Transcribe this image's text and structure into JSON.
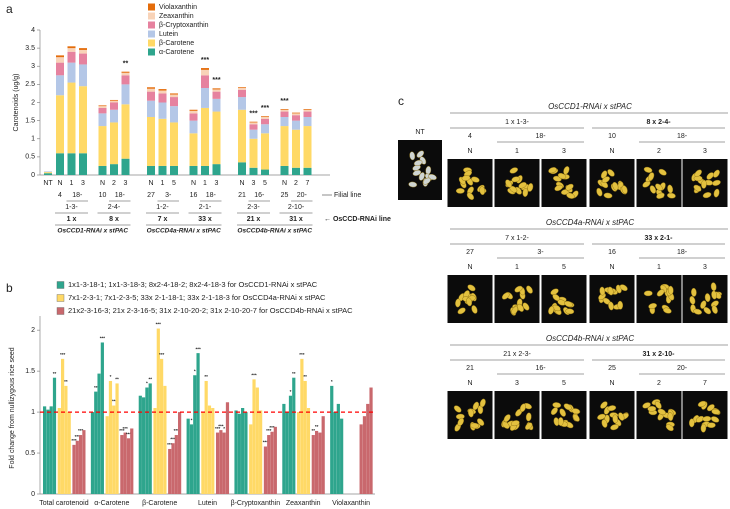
{
  "chart_data": [
    {
      "panel": "a",
      "type": "stacked-bar",
      "y_label": "Carotenoids (ug/g)",
      "ylim": [
        0,
        4
      ],
      "yticks": [
        0,
        0.5,
        1,
        1.5,
        2,
        2.5,
        3,
        3.5,
        4
      ],
      "legend": "top",
      "categories": [
        "NT",
        "N",
        "1",
        "3",
        "N",
        "2",
        "3",
        "N",
        "1",
        "5",
        "N",
        "1",
        "3",
        "N",
        "3",
        "5",
        "N",
        "2",
        "7"
      ],
      "significance": [
        null,
        null,
        null,
        null,
        null,
        null,
        "**",
        null,
        null,
        null,
        null,
        "***",
        "***",
        null,
        "***",
        "***",
        "***",
        null,
        null
      ],
      "families": [
        {
          "name": "OsCCD1-RNAi x stPAC",
          "lines": [
            {
              "cross": "1 x",
              "parent": "1-3-",
              "progeny": [
                "4",
                "18-"
              ]
            },
            {
              "cross": "8 x",
              "parent": "2-4-",
              "progeny": [
                "10",
                "18-"
              ]
            }
          ]
        },
        {
          "name": "OsCCD4a-RNAi x stPAC",
          "lines": [
            {
              "cross": "7 x",
              "parent": "1-2-",
              "progeny": [
                "27",
                "3-"
              ]
            },
            {
              "cross": "33 x",
              "parent": "2-1-",
              "progeny": [
                "16",
                "18-"
              ]
            }
          ]
        },
        {
          "name": "OsCCD4b-RNAi x stPAC",
          "lines": [
            {
              "cross": "21 x",
              "parent": "2-3-",
              "progeny": [
                "21",
                "16-"
              ]
            },
            {
              "cross": "31 x",
              "parent": "2-10-",
              "progeny": [
                "25",
                "20-"
              ]
            }
          ]
        }
      ],
      "filial_label": "Filial line",
      "rnai_label": "← OsCCD-RNAi line",
      "series": [
        {
          "name": "α-Carotene",
          "color": "#2ea58d",
          "values": [
            0.05,
            0.6,
            0.6,
            0.6,
            0.25,
            0.3,
            0.45,
            0.25,
            0.25,
            0.25,
            0.25,
            0.25,
            0.3,
            0.35,
            0.2,
            0.15,
            0.25,
            0.2,
            0.2
          ]
        },
        {
          "name": "β-Carotene",
          "color": "#ffd966",
          "values": [
            0.03,
            1.6,
            1.95,
            1.85,
            1.1,
            1.15,
            1.5,
            1.35,
            1.3,
            1.2,
            0.9,
            1.6,
            1.45,
            1.45,
            0.8,
            1.0,
            1.1,
            1.05,
            1.15
          ]
        },
        {
          "name": "Lutein",
          "color": "#b4c7e7",
          "values": [
            0.02,
            0.55,
            0.55,
            0.6,
            0.35,
            0.35,
            0.55,
            0.45,
            0.45,
            0.45,
            0.35,
            0.55,
            0.35,
            0.35,
            0.25,
            0.25,
            0.25,
            0.25,
            0.25
          ]
        },
        {
          "name": "β-Cryptoxanthin",
          "color": "#e6829f",
          "values": [
            0,
            0.35,
            0.3,
            0.3,
            0.15,
            0.2,
            0.25,
            0.25,
            0.25,
            0.25,
            0.2,
            0.35,
            0.2,
            0.2,
            0.15,
            0.15,
            0.15,
            0.15,
            0.15
          ]
        },
        {
          "name": "Zeaxanthin",
          "color": "#f8d3b8",
          "values": [
            0,
            0.15,
            0.1,
            0.1,
            0.05,
            0.05,
            0.07,
            0.08,
            0.08,
            0.07,
            0.07,
            0.15,
            0.06,
            0.05,
            0.05,
            0.05,
            0.05,
            0.05,
            0.05
          ]
        },
        {
          "name": "Violaxanthin",
          "color": "#e46c0a",
          "values": [
            0,
            0.05,
            0.05,
            0.05,
            0.02,
            0.02,
            0.03,
            0.04,
            0.04,
            0.03,
            0.03,
            0.05,
            0.03,
            0.02,
            0.02,
            0.02,
            0.02,
            0.02,
            0.02
          ]
        }
      ]
    },
    {
      "panel": "b",
      "type": "grouped-bar",
      "y_label": "Fold change from nullizygous rice seed",
      "ylim": [
        0,
        2.1
      ],
      "yticks": [
        0,
        0.5,
        1,
        1.5,
        2
      ],
      "reference_line": 1,
      "reference_color": "#ff0000",
      "categories": [
        "Total carotenoid",
        "α-Carotene",
        "β-Carotene",
        "Lutein",
        "β-Cryptoxanthin",
        "Zeaxanthin",
        "Violaxanthin"
      ],
      "groups": [
        {
          "legend": "1x1-3-18-1; 1x1-3-18-3; 8x2-4-18-2; 8x2-4-18-3 for OsCCD1-RNAi x stPAC",
          "color": "#2ea58d",
          "lines": [
            {
              "values": [
                1.07,
                1.0,
                1.2,
                0.92,
                1.02,
                1.1,
                1.32
              ],
              "significance": [
                null,
                null,
                null,
                null,
                null,
                null,
                "*"
              ]
            },
            {
              "values": [
                1.03,
                1.25,
                1.18,
                0.85,
                0.98,
                1.0,
                1.0
              ],
              "significance": [
                null,
                "**",
                null,
                "*",
                null,
                null,
                null
              ]
            },
            {
              "values": [
                1.07,
                1.47,
                1.3,
                1.45,
                1.05,
                1.2,
                1.1
              ],
              "significance": [
                null,
                null,
                "*",
                "*",
                null,
                "*",
                null
              ]
            },
            {
              "values": [
                1.42,
                1.85,
                1.35,
                1.72,
                1.0,
                1.42,
                0.92
              ],
              "significance": [
                "**",
                "***",
                "**",
                "***",
                null,
                "**",
                null
              ]
            }
          ]
        },
        {
          "legend": "7x1-2-3-1; 7x1-2-3-5; 33x 2-1-18-1; 33x 2-1-18-3 for OsCCD4a-RNAi x stPAC",
          "color": "#ffd966",
          "lines": [
            {
              "values": [
                1.05,
                0.95,
                1.05,
                1.0,
                0.85,
                1.0,
                null
              ],
              "significance": [
                null,
                null,
                null,
                null,
                null,
                null,
                null
              ]
            },
            {
              "values": [
                1.65,
                1.38,
                2.02,
                1.38,
                1.4,
                1.65,
                null
              ],
              "significance": [
                "***",
                "*",
                "***",
                "**",
                "***",
                "***",
                null
              ]
            },
            {
              "values": [
                1.32,
                1.08,
                1.65,
                1.08,
                1.3,
                1.38,
                null
              ],
              "significance": [
                "**",
                "**",
                "***",
                null,
                null,
                "**",
                null
              ]
            },
            {
              "values": [
                1.0,
                1.35,
                1.32,
                1.05,
                1.02,
                1.05,
                null
              ],
              "significance": [
                null,
                "**",
                null,
                null,
                null,
                null,
                null
              ]
            }
          ]
        },
        {
          "legend": "21x2-3-16-3; 21x 2-3-16-5; 31x 2-10-20-2; 31x 2-10-20-7 for OsCCD4b-RNAi x stPAC",
          "color": "#c9686d",
          "lines": [
            {
              "values": [
                0.6,
                0.72,
                0.55,
                0.75,
                0.58,
                0.72,
                0.85
              ],
              "significance": [
                "***",
                "***",
                "***",
                "***",
                "***",
                "**",
                null
              ]
            },
            {
              "values": [
                0.65,
                0.75,
                0.62,
                0.78,
                0.72,
                0.77,
                0.95
              ],
              "significance": [
                "***",
                "***",
                "***",
                "***",
                "***",
                "**",
                null
              ]
            },
            {
              "values": [
                0.72,
                0.68,
                0.72,
                0.75,
                0.76,
                0.75,
                1.1
              ],
              "significance": [
                "***",
                "***",
                "***",
                "*",
                "***",
                null,
                null
              ]
            },
            {
              "values": [
                0.78,
                0.8,
                1.0,
                1.12,
                0.82,
                0.95,
                1.3
              ],
              "significance": [
                null,
                null,
                null,
                null,
                null,
                null,
                null
              ]
            }
          ]
        }
      ]
    }
  ],
  "photo_panel": {
    "label": "c",
    "nt_label": "NT",
    "sections": [
      {
        "title": "OsCCD1-RNAi x stPAC",
        "crosses": [
          "1 x 1-3-",
          "8 x 2-4-"
        ],
        "progeny": [
          [
            "4",
            "18-"
          ],
          [
            "10",
            "18-"
          ]
        ],
        "plants": [
          "N",
          "1",
          "3",
          "N",
          "2",
          "3"
        ]
      },
      {
        "title": "OsCCD4a-RNAi x stPAC",
        "crosses": [
          "7 x 1-2-",
          "33 x 2-1-"
        ],
        "progeny": [
          [
            "27",
            "3-"
          ],
          [
            "16",
            "18-"
          ]
        ],
        "plants": [
          "N",
          "1",
          "5",
          "N",
          "1",
          "3"
        ]
      },
      {
        "title": "OsCCD4b-RNAi x stPAC",
        "crosses": [
          "21 x 2-3-",
          "31 x 2-10-"
        ],
        "progeny": [
          [
            "21",
            "16-"
          ],
          [
            "25",
            "20-"
          ]
        ],
        "plants": [
          "N",
          "3",
          "5",
          "N",
          "2",
          "7"
        ]
      }
    ]
  }
}
